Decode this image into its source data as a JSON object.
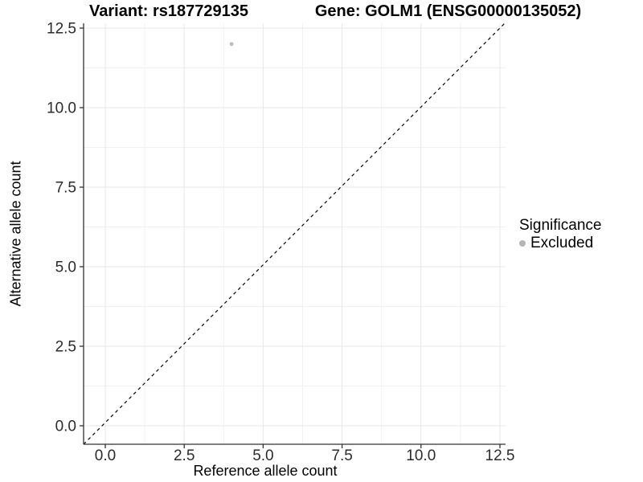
{
  "header": {
    "title_left": "Variant: rs187729135",
    "title_right": "Gene: GOLM1 (ENSG00000135052)"
  },
  "axes": {
    "x_label": "Reference allele count",
    "y_label": "Alternative allele count"
  },
  "legend": {
    "title": "Significance",
    "items": [
      {
        "label": "Excluded",
        "color": "#b5b5b5"
      }
    ]
  },
  "colors": {
    "grid_major": "#e7e7e7",
    "grid_minor": "#f1f1f1",
    "axis_line": "#333333",
    "tick_text": "#2b2b2b",
    "reference_line": "#000000",
    "background": "#ffffff"
  },
  "chart_data": {
    "type": "scatter",
    "title": "Variant: rs187729135   |   Gene: GOLM1 (ENSG00000135052)",
    "xlabel": "Reference allele count",
    "ylabel": "Alternative allele count",
    "xlim": [
      -0.65,
      13.1
    ],
    "ylim": [
      -0.6,
      12.65
    ],
    "x_ticks": [
      0.0,
      2.5,
      5.0,
      7.5,
      10.0,
      12.5
    ],
    "y_ticks": [
      0.0,
      2.5,
      5.0,
      7.5,
      10.0,
      12.5
    ],
    "tick_format_decimals": 1,
    "grid": "major+minor",
    "legend_position": "right",
    "series": [
      {
        "name": "Excluded",
        "color": "#bcbcbc",
        "points": [
          {
            "x": 4,
            "y": 12
          }
        ]
      }
    ],
    "reference_line": {
      "type": "identity",
      "slope": 1,
      "intercept": 0,
      "style": "dashed",
      "color": "#000000"
    }
  }
}
